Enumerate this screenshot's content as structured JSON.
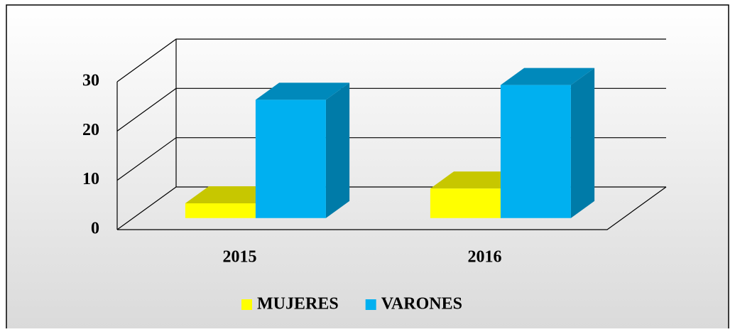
{
  "chart_data": {
    "type": "bar3d",
    "categories": [
      "2015",
      "2016"
    ],
    "series": [
      {
        "name": "MUJERES",
        "color": "#ffff00",
        "values": [
          3,
          6
        ]
      },
      {
        "name": "VARONES",
        "color": "#00b0f0",
        "values": [
          24,
          27
        ]
      }
    ],
    "ylim": [
      0,
      30
    ],
    "yticks": [
      0,
      10,
      20,
      30
    ],
    "grid": true,
    "legend": "bottom"
  }
}
